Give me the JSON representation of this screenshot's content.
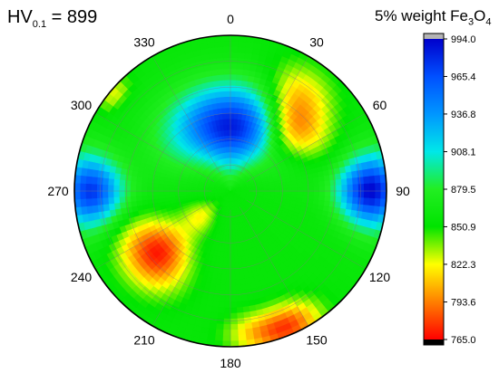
{
  "annotation": {
    "hv_prefix": "HV",
    "hv_subscript": "0.1",
    "hv_value": "= 899"
  },
  "colorbar": {
    "title_prefix": "5% weight Fe",
    "title_sub1": "3",
    "title_mid": "O",
    "title_sub2": "4",
    "labels": [
      "994.0",
      "965.4",
      "936.8",
      "908.1",
      "879.5",
      "850.9",
      "822.3",
      "793.6",
      "765.0"
    ],
    "over_color": "#b4b4b4",
    "under_color": "#000000",
    "stops": [
      {
        "v": 765.0,
        "c": "#ff0000"
      },
      {
        "v": 793.6,
        "c": "#ff7f00"
      },
      {
        "v": 822.3,
        "c": "#ffff00"
      },
      {
        "v": 850.9,
        "c": "#00e400"
      },
      {
        "v": 879.5,
        "c": "#22ee22"
      },
      {
        "v": 908.1,
        "c": "#00e8e8"
      },
      {
        "v": 936.8,
        "c": "#0096ff"
      },
      {
        "v": 965.4,
        "c": "#0050ff"
      },
      {
        "v": 994.0,
        "c": "#0000cc"
      }
    ]
  },
  "chart_data": {
    "type": "heatmap",
    "projection": "polar",
    "angular_ticks": [
      "0",
      "30",
      "60",
      "90",
      "120",
      "150",
      "180",
      "210",
      "240",
      "270",
      "300",
      "330"
    ],
    "angle_zero": "top",
    "angle_direction": "clockwise",
    "grid": true,
    "value_range": [
      765.0,
      994.0
    ],
    "background_value": 858,
    "features": [
      {
        "angle": 0,
        "r": 0.42,
        "value": 985,
        "sigma_angle_deg": 34,
        "sigma_r": 0.18
      },
      {
        "angle": 90,
        "r": 0.9,
        "value": 992,
        "sigma_angle_deg": 10,
        "sigma_r": 0.14
      },
      {
        "angle": 270,
        "r": 0.9,
        "value": 975,
        "sigma_angle_deg": 10,
        "sigma_r": 0.14
      },
      {
        "angle": 45,
        "r": 0.57,
        "value": 775,
        "sigma_angle_deg": 15,
        "sigma_r": 0.14
      },
      {
        "angle": 35,
        "r": 0.78,
        "value": 822,
        "sigma_angle_deg": 11,
        "sigma_r": 0.13
      },
      {
        "angle": 230,
        "r": 0.62,
        "value": 770,
        "sigma_angle_deg": 14,
        "sigma_r": 0.15
      },
      {
        "angle": 157,
        "r": 0.95,
        "value": 782,
        "sigma_angle_deg": 9,
        "sigma_r": 0.1
      },
      {
        "angle": 172,
        "r": 0.92,
        "value": 825,
        "sigma_angle_deg": 8,
        "sigma_r": 0.09
      },
      {
        "angle": 230,
        "r": 0.25,
        "value": 825,
        "sigma_angle_deg": 15,
        "sigma_r": 0.08
      },
      {
        "angle": 310,
        "r": 0.97,
        "value": 825,
        "sigma_angle_deg": 5,
        "sigma_r": 0.05
      }
    ]
  }
}
